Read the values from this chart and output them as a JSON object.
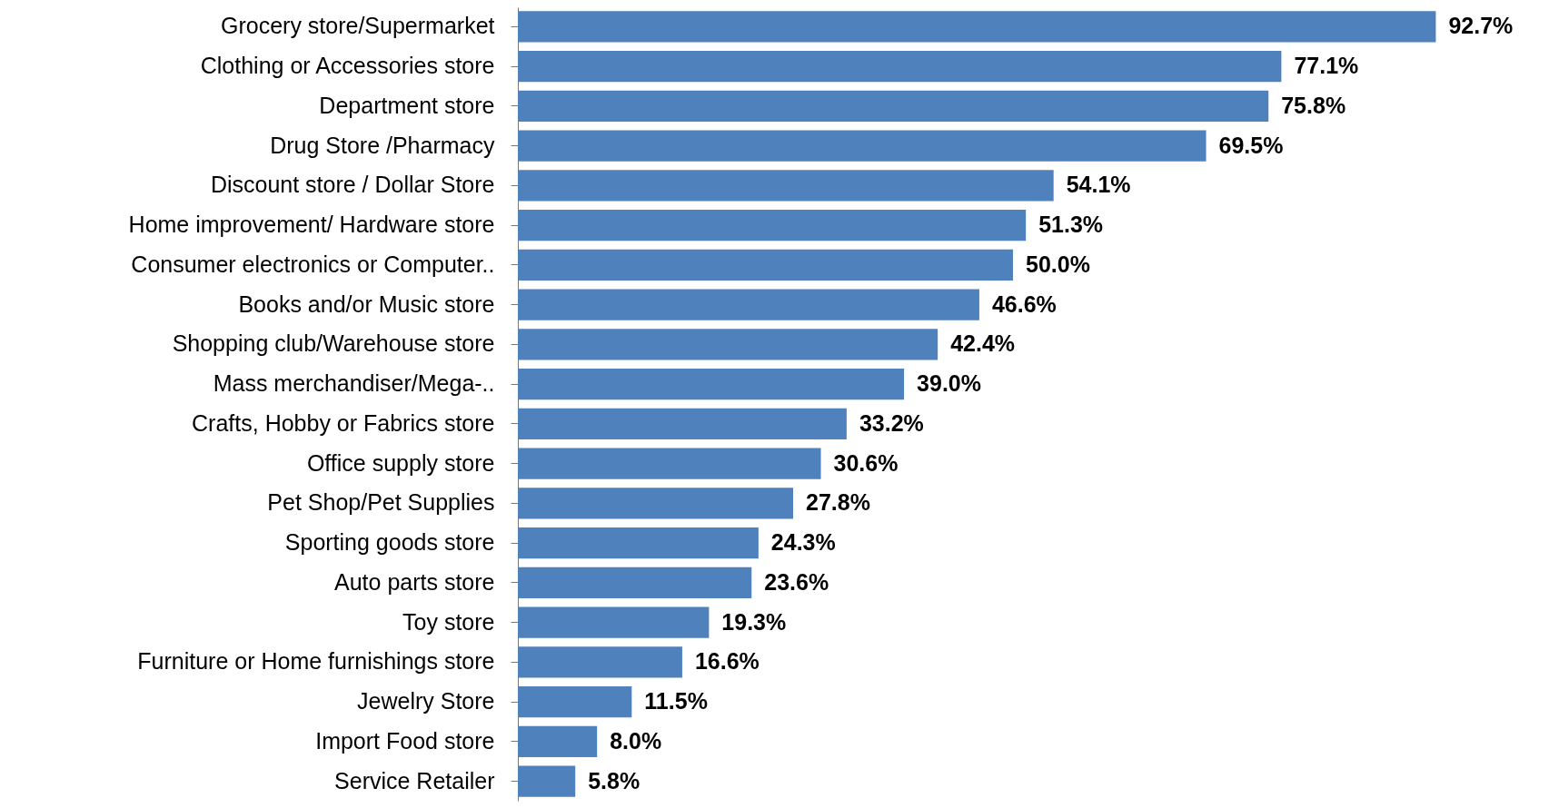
{
  "chart_data": {
    "type": "bar",
    "orientation": "horizontal",
    "categories": [
      "Grocery store/Supermarket",
      "Clothing or Accessories store",
      "Department store",
      "Drug Store /Pharmacy",
      "Discount store / Dollar Store",
      "Home improvement/ Hardware store",
      "Consumer electronics or Computer..",
      "Books and/or Music store",
      "Shopping club/Warehouse store",
      "Mass merchandiser/Mega-..",
      "Crafts, Hobby or Fabrics store",
      "Office supply store",
      "Pet Shop/Pet Supplies",
      "Sporting goods store",
      "Auto parts store",
      "Toy store",
      "Furniture or Home furnishings store",
      "Jewelry Store",
      "Import Food store",
      "Service Retailer"
    ],
    "values": [
      92.7,
      77.1,
      75.8,
      69.5,
      54.1,
      51.3,
      50.0,
      46.6,
      42.4,
      39.0,
      33.2,
      30.6,
      27.8,
      24.3,
      23.6,
      19.3,
      16.6,
      11.5,
      8.0,
      5.8
    ],
    "value_labels": [
      "92.7%",
      "77.1%",
      "75.8%",
      "69.5%",
      "54.1%",
      "51.3%",
      "50.0%",
      "46.6%",
      "42.4%",
      "39.0%",
      "33.2%",
      "30.6%",
      "27.8%",
      "24.3%",
      "23.6%",
      "19.3%",
      "16.6%",
      "11.5%",
      "8.0%",
      "5.8%"
    ],
    "color": "#4f81bd",
    "grid": false,
    "tick_labels": "y"
  }
}
